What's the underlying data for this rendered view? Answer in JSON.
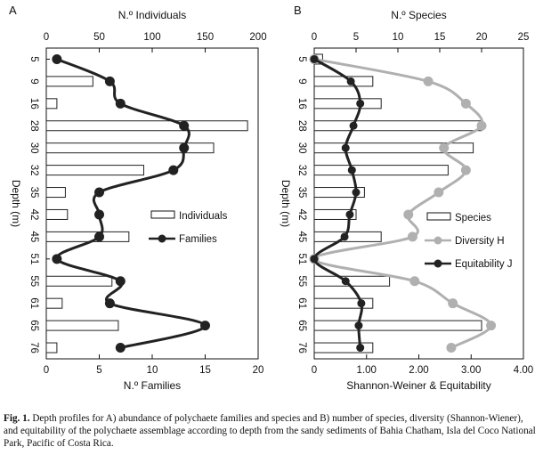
{
  "charts": [
    {
      "panel_label": "A",
      "top_axis_title": "N.º Individuals",
      "bottom_axis_title": "N.º Families",
      "y_axis_title": "Depth (m)",
      "legend": [
        "Individuals",
        "Families"
      ]
    },
    {
      "panel_label": "B",
      "top_axis_title": "N.º Species",
      "bottom_axis_title": "Shannon-Weiner & Equitability",
      "y_axis_title": "Depth (m)",
      "legend": [
        "Species",
        "Diversity H",
        "Equitability J"
      ]
    }
  ],
  "caption": {
    "label": "Fig. 1.",
    "text": "Depth profiles for A) abundance of polychaete families and species and B) number of species, diversity (Shannon-Wiener), and equitability of the polychaete assemblage according to depth from the sandy sediments of Bahia Chatham, Isla del Coco National Park, Pacific of Costa Rica."
  },
  "colors": {
    "line_dark": "#222222",
    "line_gray": "#b0b0b0",
    "bar_fill": "#ffffff",
    "bar_stroke": "#222222"
  },
  "chart_data": [
    {
      "type": "bar",
      "panel": "A",
      "orientation": "horizontal",
      "categories": [
        "5",
        "9",
        "16",
        "28",
        "30",
        "32",
        "35",
        "42",
        "45",
        "51",
        "55",
        "61",
        "65",
        "76"
      ],
      "top_axis": {
        "title": "N.º Individuals",
        "range": [
          0,
          200
        ],
        "ticks": [
          0,
          50,
          100,
          150,
          200
        ]
      },
      "bottom_axis": {
        "title": "N.º Families",
        "range": [
          0,
          20
        ],
        "ticks": [
          0,
          5,
          10,
          15,
          20
        ]
      },
      "ylabel": "Depth (m)",
      "series": [
        {
          "name": "Individuals",
          "type": "bar",
          "axis": "top",
          "values": [
            0,
            44,
            10,
            190,
            158,
            92,
            18,
            20,
            78,
            0,
            62,
            15,
            68,
            10
          ]
        },
        {
          "name": "Families",
          "type": "line",
          "axis": "bottom",
          "values": [
            1,
            6,
            7,
            13,
            13,
            12,
            5,
            5,
            5,
            1,
            7,
            6,
            15,
            7
          ]
        }
      ],
      "legend_position": "right-middle",
      "grid": false
    },
    {
      "type": "bar",
      "panel": "B",
      "orientation": "horizontal",
      "categories": [
        "5",
        "9",
        "16",
        "28",
        "30",
        "32",
        "35",
        "42",
        "45",
        "51",
        "55",
        "61",
        "65",
        "76"
      ],
      "top_axis": {
        "title": "N.º Species",
        "range": [
          0,
          25
        ],
        "ticks": [
          0,
          5,
          10,
          15,
          20,
          25
        ]
      },
      "bottom_axis": {
        "title": "Shannon-Weiner & Equitability",
        "range": [
          0,
          4
        ],
        "ticks": [
          "0",
          "1.00",
          "2.00",
          "3.00",
          "4.00"
        ]
      },
      "ylabel": "Depth (m)",
      "series": [
        {
          "name": "Species",
          "type": "bar",
          "axis": "top",
          "values": [
            1,
            7,
            8,
            20,
            19,
            16,
            6,
            5,
            8,
            0,
            9,
            7,
            20,
            7
          ]
        },
        {
          "name": "Diversity H",
          "type": "line",
          "axis": "bottom",
          "values": [
            0,
            2.18,
            2.9,
            3.2,
            2.48,
            2.9,
            2.38,
            1.8,
            1.88,
            0,
            1.92,
            2.65,
            3.38,
            2.62
          ]
        },
        {
          "name": "Equitability J",
          "type": "line",
          "axis": "bottom",
          "values": [
            0,
            0.7,
            0.88,
            0.75,
            0.6,
            0.72,
            0.8,
            0.68,
            0.58,
            0,
            0.6,
            0.9,
            0.85,
            0.88
          ]
        }
      ],
      "legend_position": "right-middle",
      "grid": false
    }
  ]
}
